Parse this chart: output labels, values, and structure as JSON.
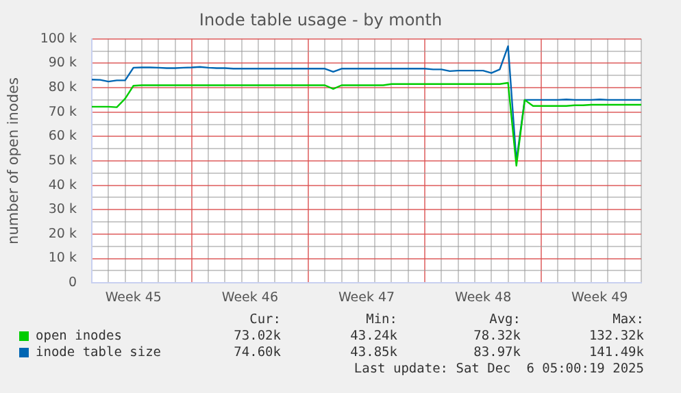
{
  "chart_data": {
    "type": "line",
    "title": "Inode table usage - by month",
    "ylabel": "number of open inodes",
    "categories": [
      null,
      null,
      null,
      null,
      null,
      "Week 45",
      null,
      null,
      null,
      null,
      null,
      null,
      null,
      null,
      null,
      null,
      null,
      null,
      null,
      "Week 46",
      null,
      null,
      null,
      null,
      null,
      null,
      null,
      null,
      null,
      null,
      null,
      null,
      null,
      "Week 47",
      null,
      null,
      null,
      null,
      null,
      null,
      null,
      null,
      null,
      null,
      null,
      null,
      null,
      "Week 48",
      null,
      null,
      null,
      null,
      null,
      null,
      null,
      null,
      null,
      null,
      null,
      null,
      null,
      "Week 49",
      null,
      null,
      null,
      null,
      null
    ],
    "ylim": [
      0,
      100
    ],
    "yticks": [
      {
        "value": 0,
        "label": "0"
      },
      {
        "value": 5,
        "label": null
      },
      {
        "value": 10,
        "label": "10 k"
      },
      {
        "value": 15,
        "label": null
      },
      {
        "value": 20,
        "label": "20 k"
      },
      {
        "value": 25,
        "label": null
      },
      {
        "value": 30,
        "label": "30 k"
      },
      {
        "value": 35,
        "label": null
      },
      {
        "value": 40,
        "label": "40 k"
      },
      {
        "value": 45,
        "label": null
      },
      {
        "value": 50,
        "label": "50 k"
      },
      {
        "value": 55,
        "label": null
      },
      {
        "value": 60,
        "label": "60 k"
      },
      {
        "value": 65,
        "label": null
      },
      {
        "value": 70,
        "label": "70 k"
      },
      {
        "value": 75,
        "label": null
      },
      {
        "value": 80,
        "label": "80 k"
      },
      {
        "value": 85,
        "label": null
      },
      {
        "value": 90,
        "label": "90 k"
      },
      {
        "value": 95,
        "label": null
      },
      {
        "value": 100,
        "label": "100 k"
      }
    ],
    "grid": true,
    "legend": "bottom",
    "marker": "none",
    "line_style": "solid",
    "series": [
      {
        "name": "open inodes",
        "color": "#00cc00",
        "values": [
          72.2,
          72.2,
          72.2,
          72,
          75.5,
          80.8,
          81,
          81,
          81,
          81,
          81,
          81,
          81,
          81,
          81,
          81,
          81,
          81,
          81,
          81,
          81,
          81,
          81,
          81,
          81,
          81,
          81,
          81,
          81,
          79.5,
          81,
          81,
          81,
          81,
          81,
          81,
          81.5,
          81.5,
          81.5,
          81.5,
          81.5,
          81.5,
          81.5,
          81.5,
          81.5,
          81.5,
          81.5,
          81.5,
          81.5,
          81.5,
          82,
          48,
          75,
          72.5,
          72.5,
          72.5,
          72.5,
          72.5,
          72.8,
          72.8,
          73,
          73,
          73,
          73,
          73,
          73,
          73
        ]
      },
      {
        "name": "inode table size",
        "color": "#0066b3",
        "values": [
          83.3,
          83.2,
          82.5,
          83,
          83,
          88.2,
          88.3,
          88.3,
          88.2,
          88,
          88,
          88.2,
          88.3,
          88.5,
          88.2,
          88,
          88,
          87.8,
          87.8,
          87.8,
          87.8,
          87.8,
          87.8,
          87.8,
          87.8,
          87.8,
          87.8,
          87.8,
          87.8,
          86.5,
          87.8,
          87.8,
          87.8,
          87.8,
          87.8,
          87.8,
          87.8,
          87.8,
          87.8,
          87.8,
          87.8,
          87.5,
          87.5,
          86.8,
          87,
          87,
          87,
          87,
          86,
          87.5,
          97,
          50,
          75,
          75,
          75,
          75,
          75,
          75.2,
          75,
          75,
          75,
          75.2,
          75,
          75,
          75,
          75,
          75
        ]
      }
    ],
    "annotations": [
      "Cur:",
      "Min:",
      "Avg:",
      "Max:",
      "73.02k",
      "43.24k",
      "78.32k",
      "132.32k",
      "74.60k",
      "43.85k",
      "83.97k",
      "141.49k",
      "Last update: Sat Dec  6 05:00:19 2025"
    ]
  }
}
